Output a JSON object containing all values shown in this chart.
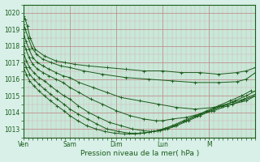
{
  "fig_bg_color": "#d8f0e8",
  "plot_bg_color": "#c8e8d8",
  "grid_major_color": "#c0a0b0",
  "grid_minor_color": "#d8c0c8",
  "line_color": "#1a5c1a",
  "xlabel": "Pression niveau de la mer( hPa )",
  "ylim": [
    1012.5,
    1020.5
  ],
  "xlim": [
    0,
    5.0
  ],
  "x_ticks": [
    0.0,
    1.0,
    2.0,
    3.0,
    4.0,
    5.0
  ],
  "x_tick_labels": [
    "Ven",
    "Sam",
    "Dim",
    "Lun",
    "M",
    ""
  ],
  "y_ticks": [
    1013,
    1014,
    1015,
    1016,
    1017,
    1018,
    1019,
    1020
  ],
  "series": [
    {
      "x": [
        0.0,
        0.04,
        0.08,
        0.14,
        0.25,
        0.45,
        0.7,
        0.9,
        1.1,
        1.4,
        1.8,
        2.2,
        2.6,
        3.0,
        3.4,
        3.8,
        4.2,
        4.6,
        4.8,
        5.0
      ],
      "y": [
        1019.8,
        1019.6,
        1019.2,
        1018.5,
        1017.8,
        1017.4,
        1017.1,
        1017.0,
        1016.9,
        1016.8,
        1016.7,
        1016.6,
        1016.5,
        1016.5,
        1016.4,
        1016.4,
        1016.3,
        1016.4,
        1016.5,
        1016.7
      ]
    },
    {
      "x": [
        0.0,
        0.04,
        0.1,
        0.18,
        0.28,
        0.42,
        0.6,
        0.8,
        1.0,
        1.3,
        1.7,
        2.2,
        2.7,
        3.2,
        3.7,
        4.2,
        4.6,
        4.8,
        5.0
      ],
      "y": [
        1019.3,
        1019.0,
        1018.5,
        1017.9,
        1017.5,
        1017.2,
        1017.0,
        1016.8,
        1016.7,
        1016.5,
        1016.3,
        1016.1,
        1016.0,
        1015.9,
        1015.8,
        1015.8,
        1015.85,
        1016.0,
        1016.4
      ]
    },
    {
      "x": [
        0.0,
        0.05,
        0.12,
        0.2,
        0.3,
        0.42,
        0.55,
        0.7,
        0.85,
        1.0,
        1.2,
        1.5,
        1.8,
        2.1,
        2.5,
        2.9,
        3.3,
        3.7,
        4.1,
        4.5,
        4.8,
        5.0
      ],
      "y": [
        1018.8,
        1018.3,
        1017.8,
        1017.3,
        1017.0,
        1016.8,
        1016.6,
        1016.4,
        1016.2,
        1016.1,
        1015.8,
        1015.5,
        1015.2,
        1014.9,
        1014.7,
        1014.5,
        1014.3,
        1014.2,
        1014.3,
        1014.5,
        1014.7,
        1015.0
      ]
    },
    {
      "x": [
        0.0,
        0.05,
        0.12,
        0.2,
        0.3,
        0.42,
        0.55,
        0.7,
        0.85,
        1.0,
        1.2,
        1.45,
        1.7,
        2.0,
        2.3,
        2.6,
        2.85,
        3.0,
        3.2,
        3.5,
        3.8,
        4.1,
        4.4,
        4.7,
        5.0
      ],
      "y": [
        1018.2,
        1017.8,
        1017.3,
        1016.9,
        1016.6,
        1016.4,
        1016.2,
        1016.0,
        1015.8,
        1015.5,
        1015.2,
        1014.8,
        1014.5,
        1014.1,
        1013.8,
        1013.6,
        1013.5,
        1013.5,
        1013.6,
        1013.7,
        1013.9,
        1014.1,
        1014.4,
        1014.7,
        1015.0
      ]
    },
    {
      "x": [
        0.0,
        0.06,
        0.13,
        0.22,
        0.33,
        0.45,
        0.58,
        0.72,
        0.87,
        1.0,
        1.18,
        1.4,
        1.62,
        1.85,
        2.1,
        2.35,
        2.58,
        2.75,
        2.9,
        3.05,
        3.25,
        3.5,
        3.75,
        4.0,
        4.25,
        4.5,
        4.75,
        5.0
      ],
      "y": [
        1017.6,
        1017.1,
        1016.7,
        1016.4,
        1016.1,
        1015.9,
        1015.6,
        1015.3,
        1015.0,
        1014.8,
        1014.4,
        1014.0,
        1013.7,
        1013.4,
        1013.2,
        1013.0,
        1012.9,
        1012.85,
        1012.9,
        1013.0,
        1013.2,
        1013.5,
        1013.8,
        1014.1,
        1014.4,
        1014.6,
        1014.8,
        1015.1
      ]
    },
    {
      "x": [
        0.0,
        0.06,
        0.13,
        0.22,
        0.33,
        0.45,
        0.58,
        0.72,
        0.87,
        1.0,
        1.18,
        1.38,
        1.58,
        1.8,
        2.05,
        2.28,
        2.5,
        2.7,
        2.88,
        3.0,
        3.2,
        3.45,
        3.7,
        3.95,
        4.2,
        4.45,
        4.7,
        4.9
      ],
      "y": [
        1017.1,
        1016.7,
        1016.3,
        1016.0,
        1015.7,
        1015.4,
        1015.1,
        1014.8,
        1014.5,
        1014.2,
        1013.9,
        1013.6,
        1013.3,
        1013.0,
        1012.85,
        1012.75,
        1012.75,
        1012.8,
        1012.9,
        1013.0,
        1013.2,
        1013.5,
        1013.8,
        1014.1,
        1014.4,
        1014.7,
        1015.0,
        1015.3
      ]
    },
    {
      "x": [
        0.0,
        0.06,
        0.13,
        0.22,
        0.33,
        0.45,
        0.58,
        0.72,
        0.87,
        1.0,
        1.17,
        1.36,
        1.56,
        1.75,
        1.96,
        2.18,
        2.4,
        2.6,
        2.8,
        2.95,
        3.1,
        3.3,
        3.55,
        3.8,
        4.05,
        4.3,
        4.55,
        4.8,
        5.0
      ],
      "y": [
        1016.7,
        1016.3,
        1015.9,
        1015.6,
        1015.3,
        1015.0,
        1014.7,
        1014.4,
        1014.1,
        1013.8,
        1013.5,
        1013.2,
        1013.0,
        1012.85,
        1012.75,
        1012.7,
        1012.7,
        1012.75,
        1012.85,
        1012.9,
        1013.0,
        1013.2,
        1013.5,
        1013.8,
        1014.1,
        1014.4,
        1014.7,
        1015.0,
        1015.3
      ]
    }
  ]
}
